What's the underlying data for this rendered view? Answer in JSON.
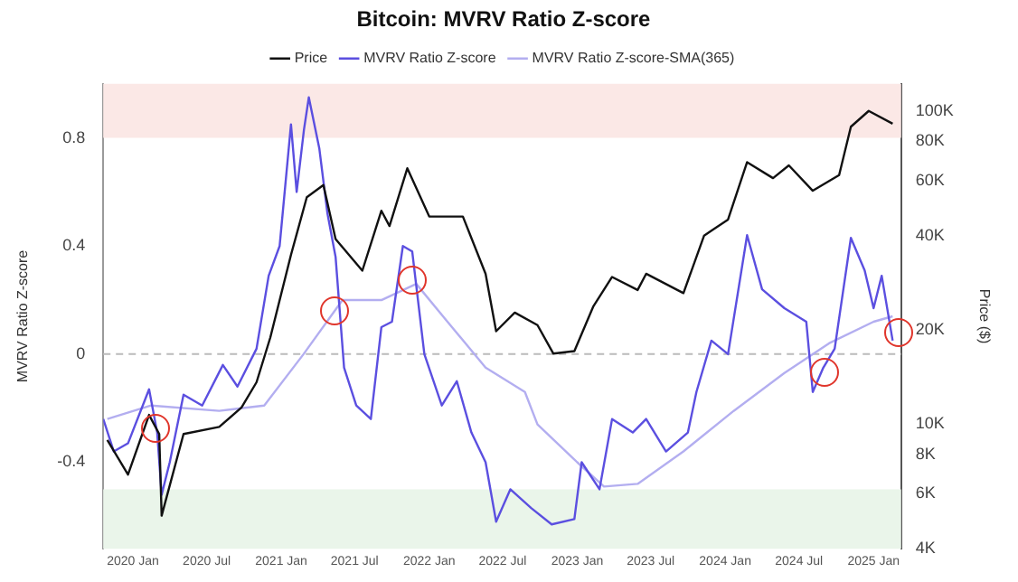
{
  "chart_data": {
    "type": "line",
    "title": "Bitcoin: MVRV Ratio Z-score",
    "ylabel": "MVRV Ratio Z-score",
    "y2label": "Price ($)",
    "legend": "top",
    "grid": false,
    "marker": "none",
    "line_style": "solid",
    "log": "y2",
    "xlim": [
      "2019-10-20",
      "2025-03-10"
    ],
    "xticks": [
      {
        "value": "2020-01-01",
        "label": "2020 Jan"
      },
      {
        "value": "2020-07-01",
        "label": "2020 Jul"
      },
      {
        "value": "2021-01-01",
        "label": "2021 Jan"
      },
      {
        "value": "2021-07-01",
        "label": "2021 Jul"
      },
      {
        "value": "2022-01-01",
        "label": "2022 Jan"
      },
      {
        "value": "2022-07-01",
        "label": "2022 Jul"
      },
      {
        "value": "2023-01-01",
        "label": "2023 Jan"
      },
      {
        "value": "2023-07-01",
        "label": "2023 Jul"
      },
      {
        "value": "2024-01-01",
        "label": "2024 Jan"
      },
      {
        "value": "2024-07-01",
        "label": "2024 Jul"
      },
      {
        "value": "2025-01-01",
        "label": "2025 Jan"
      }
    ],
    "ylim": [
      -0.72,
      1.0
    ],
    "yticks": [
      {
        "value": -0.4,
        "label": "-0.4"
      },
      0,
      {
        "value": 0.4,
        "label": "0.4"
      },
      {
        "value": 0.8,
        "label": "0.8"
      }
    ],
    "y2lim": [
      4000,
      122000
    ],
    "y2ticks": [
      {
        "value": 4000,
        "label": "4K"
      },
      {
        "value": 6000,
        "label": "6K"
      },
      {
        "value": 8000,
        "label": "8K"
      },
      {
        "value": 10000,
        "label": "10K"
      },
      {
        "value": 20000,
        "label": "20K"
      },
      {
        "value": 40000,
        "label": "40K"
      },
      {
        "value": 60000,
        "label": "60K"
      },
      {
        "value": 80000,
        "label": "80K"
      },
      {
        "value": 100000,
        "label": "100K"
      }
    ],
    "bands": [
      {
        "axis": "y",
        "from": 0.8,
        "to": 1.0,
        "color": "#fbe8e6"
      },
      {
        "axis": "y",
        "from": -0.72,
        "to": -0.5,
        "color": "#eaf5ea"
      }
    ],
    "ref_lines": [
      {
        "axis": "y",
        "value": 0,
        "color": "#bbbbbb",
        "line_style": "dashed"
      }
    ],
    "series": [
      {
        "name": "Price",
        "color": "#111111",
        "axis": "y2",
        "x": [
          "2019-10-30",
          "2019-12-20",
          "2020-02-10",
          "2020-03-06",
          "2020-03-12",
          "2020-05-05",
          "2020-08-01",
          "2020-09-25",
          "2020-11-01",
          "2020-12-05",
          "2021-01-25",
          "2021-03-05",
          "2021-04-15",
          "2021-05-15",
          "2021-07-20",
          "2021-09-05",
          "2021-09-25",
          "2021-11-08",
          "2022-01-01",
          "2022-03-25",
          "2022-05-20",
          "2022-06-15",
          "2022-07-31",
          "2022-09-25",
          "2022-11-03",
          "2022-12-25",
          "2023-02-10",
          "2023-03-28",
          "2023-05-30",
          "2023-06-20",
          "2023-09-20",
          "2023-11-10",
          "2024-01-08",
          "2024-02-24",
          "2024-04-28",
          "2024-06-06",
          "2024-08-04",
          "2024-10-08",
          "2024-11-06",
          "2024-12-20",
          "2025-02-17"
        ],
        "values": [
          8900,
          6900,
          10700,
          9300,
          5100,
          9300,
          9800,
          11300,
          13600,
          18900,
          34700,
          53000,
          58000,
          39000,
          30900,
          48000,
          42900,
          65600,
          46000,
          46000,
          30200,
          19800,
          22700,
          20700,
          16800,
          17100,
          23800,
          29500,
          26800,
          30200,
          26200,
          40000,
          45000,
          68600,
          61000,
          67000,
          55600,
          62400,
          89000,
          100000,
          91000
        ]
      },
      {
        "name": "MVRV Ratio Z-score",
        "color": "#5b4fe0",
        "x": [
          "2019-10-20",
          "2019-11-15",
          "2019-12-20",
          "2020-02-10",
          "2020-03-01",
          "2020-03-12",
          "2020-04-01",
          "2020-05-05",
          "2020-06-20",
          "2020-08-10",
          "2020-09-15",
          "2020-11-01",
          "2020-12-01",
          "2020-12-28",
          "2021-01-25",
          "2021-02-08",
          "2021-02-26",
          "2021-03-10",
          "2021-04-05",
          "2021-04-25",
          "2021-05-15",
          "2021-06-05",
          "2021-07-05",
          "2021-08-10",
          "2021-09-05",
          "2021-10-01",
          "2021-10-28",
          "2021-11-20",
          "2021-12-20",
          "2022-02-01",
          "2022-03-10",
          "2022-04-15",
          "2022-05-20",
          "2022-06-15",
          "2022-07-20",
          "2022-09-10",
          "2022-10-30",
          "2022-12-25",
          "2023-01-12",
          "2023-02-25",
          "2023-03-28",
          "2023-05-18",
          "2023-06-20",
          "2023-08-08",
          "2023-10-01",
          "2023-10-22",
          "2023-11-28",
          "2024-01-08",
          "2024-02-24",
          "2024-04-01",
          "2024-05-26",
          "2024-07-19",
          "2024-08-04",
          "2024-08-30",
          "2024-09-27",
          "2024-11-06",
          "2024-12-10",
          "2025-01-01",
          "2025-01-21",
          "2025-02-17"
        ],
        "values": [
          -0.24,
          -0.36,
          -0.33,
          -0.13,
          -0.29,
          -0.52,
          -0.4,
          -0.15,
          -0.19,
          -0.04,
          -0.12,
          0.02,
          0.29,
          0.4,
          0.85,
          0.6,
          0.83,
          0.95,
          0.76,
          0.52,
          0.36,
          -0.05,
          -0.19,
          -0.24,
          0.1,
          0.12,
          0.4,
          0.38,
          0.0,
          -0.19,
          -0.1,
          -0.29,
          -0.4,
          -0.62,
          -0.5,
          -0.57,
          -0.63,
          -0.61,
          -0.4,
          -0.5,
          -0.24,
          -0.29,
          -0.24,
          -0.36,
          -0.29,
          -0.14,
          0.05,
          0.0,
          0.44,
          0.24,
          0.17,
          0.12,
          -0.14,
          -0.05,
          0.02,
          0.43,
          0.31,
          0.17,
          0.29,
          0.05
        ]
      },
      {
        "name": "MVRV Ratio Z-score-SMA(365)",
        "color": "#b3aef0",
        "x": [
          "2019-10-30",
          "2020-02-15",
          "2020-08-01",
          "2020-11-20",
          "2021-02-25",
          "2021-06-01",
          "2021-09-05",
          "2021-11-30",
          "2022-02-15",
          "2022-05-20",
          "2022-08-25",
          "2022-09-25",
          "2023-01-01",
          "2023-03-08",
          "2023-05-30",
          "2023-09-20",
          "2024-01-22",
          "2024-05-26",
          "2024-09-13",
          "2025-01-01",
          "2025-02-17"
        ],
        "values": [
          -0.24,
          -0.19,
          -0.21,
          -0.19,
          0.0,
          0.2,
          0.2,
          0.26,
          0.12,
          -0.05,
          -0.14,
          -0.26,
          -0.4,
          -0.49,
          -0.48,
          -0.36,
          -0.21,
          -0.07,
          0.04,
          0.12,
          0.14
        ]
      }
    ]
  }
}
